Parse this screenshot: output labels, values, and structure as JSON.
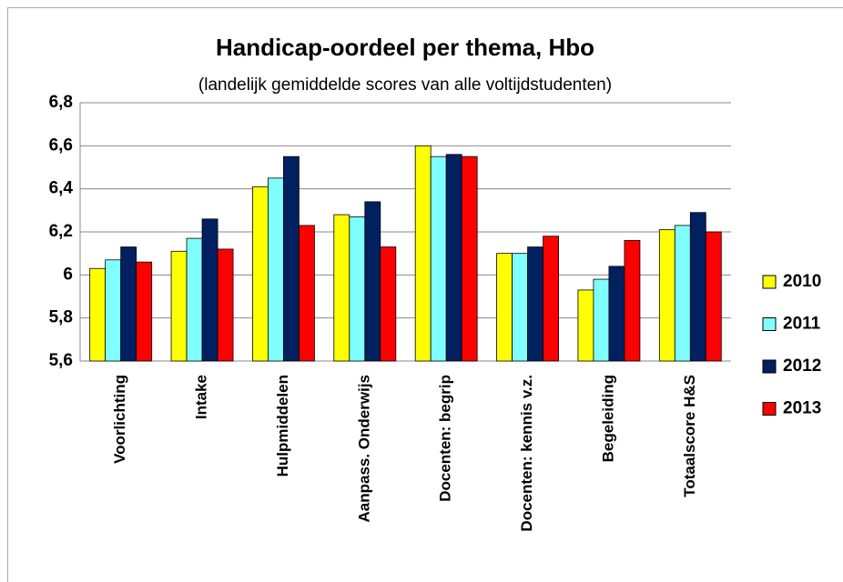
{
  "chart_data": {
    "type": "bar",
    "title": "Handicap-oordeel  per thema, Hbo",
    "subtitle": "(landelijk gemiddelde scores van alle voltijdstudenten)",
    "categories": [
      "Voorlichting",
      "Intake",
      "Hulpmiddelen",
      "Aanpass. Onderwijs",
      "Docenten: begrip",
      "Docenten: kennis v.z.",
      "Begeleiding",
      "Totaalscore H&S"
    ],
    "series": [
      {
        "name": "2010",
        "color": "#ffff00",
        "values": [
          6.03,
          6.11,
          6.41,
          6.28,
          6.6,
          6.1,
          5.93,
          6.21
        ]
      },
      {
        "name": "2011",
        "color": "#80ffff",
        "values": [
          6.07,
          6.17,
          6.45,
          6.27,
          6.55,
          6.1,
          5.98,
          6.23
        ]
      },
      {
        "name": "2012",
        "color": "#002060",
        "values": [
          6.13,
          6.26,
          6.55,
          6.34,
          6.56,
          6.13,
          6.04,
          6.29
        ]
      },
      {
        "name": "2013",
        "color": "#ff0000",
        "values": [
          6.06,
          6.12,
          6.23,
          6.13,
          6.55,
          6.18,
          6.16,
          6.2
        ]
      }
    ],
    "ylim": [
      5.6,
      6.8
    ],
    "yticks": [
      {
        "value": 5.6,
        "label": "5,6"
      },
      {
        "value": 5.8,
        "label": "5,8"
      },
      6,
      {
        "value": 6.2,
        "label": "6,2"
      },
      {
        "value": 6.4,
        "label": "6,4"
      },
      {
        "value": 6.6,
        "label": "6,6"
      },
      {
        "value": 6.8,
        "label": "6,8"
      }
    ],
    "grid": true,
    "legend": "right"
  }
}
